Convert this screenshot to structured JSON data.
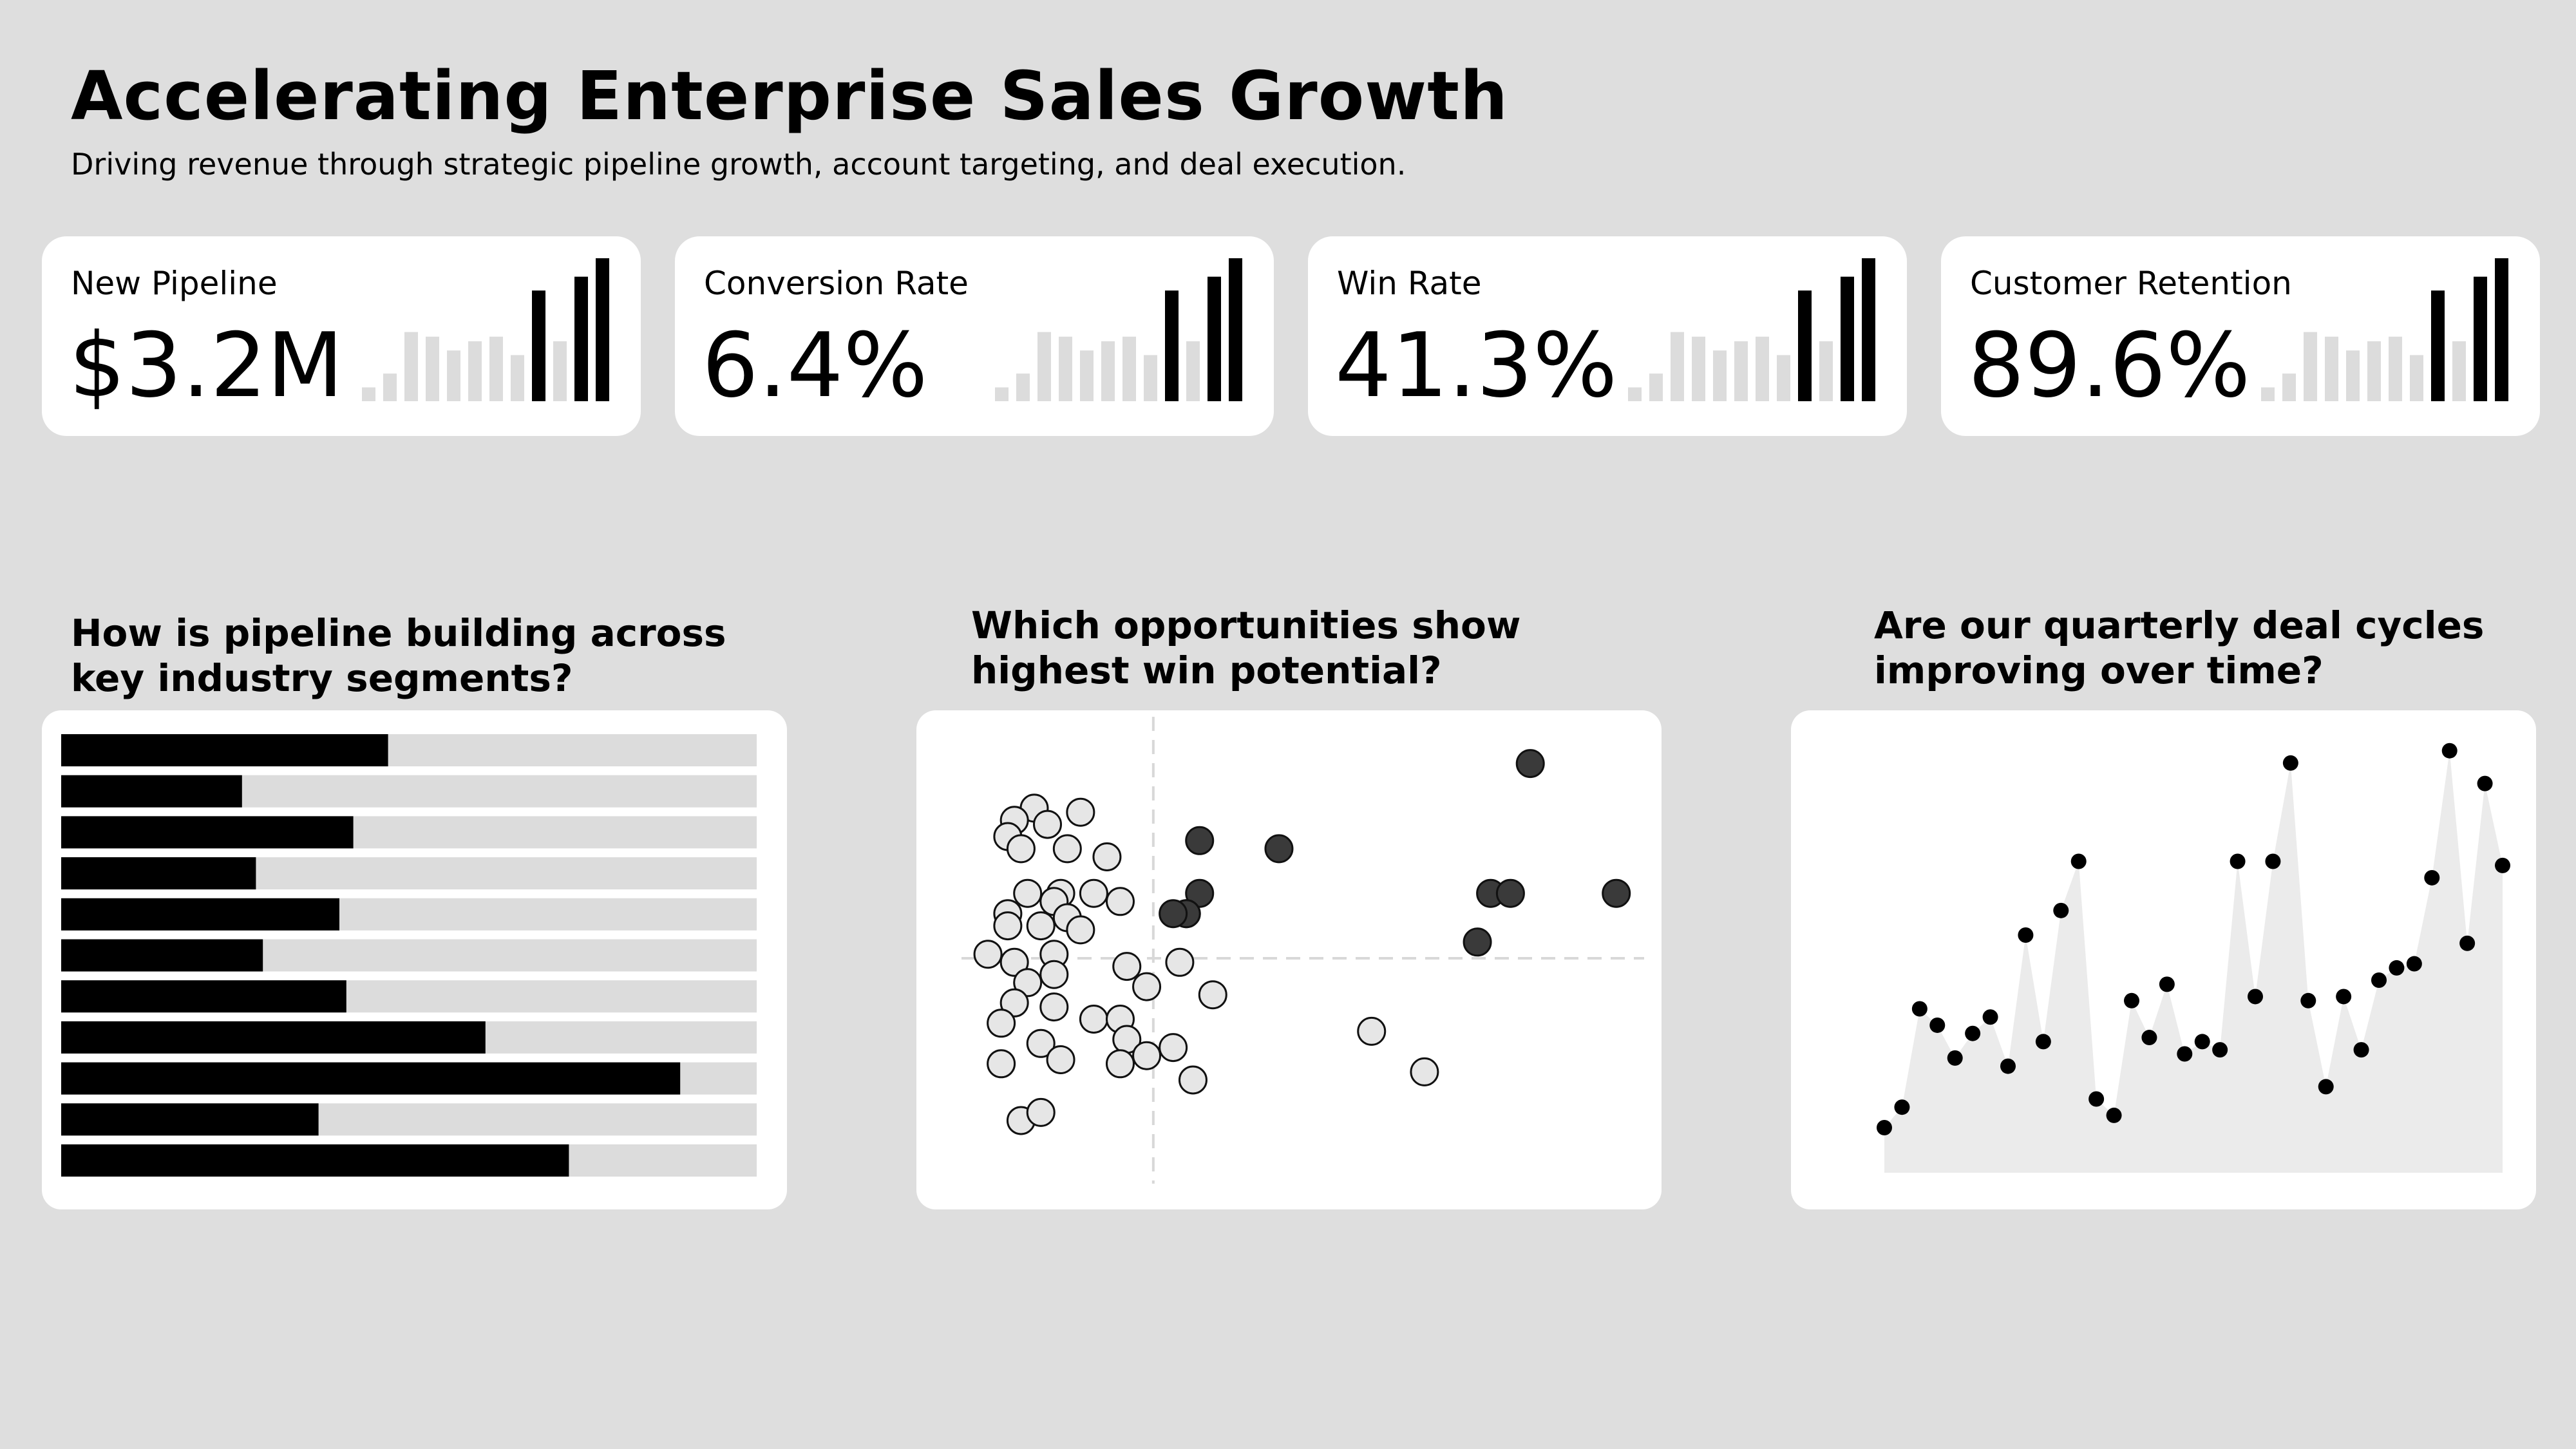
{
  "header": {
    "title": "Accelerating Enterprise Sales Growth",
    "subtitle": "Driving revenue through strategic pipeline growth, account targeting, and deal execution."
  },
  "colors": {
    "background": "#dedede",
    "card": "#ffffff",
    "accent": "#000000",
    "muted": "#dcdcdc",
    "dot_light": "#e6e6e6",
    "dot_dark": "#3a3a3a",
    "area": "#ebebeb"
  },
  "kpis": [
    {
      "label": "New Pipeline",
      "value": "$3.2M",
      "spark": [
        3,
        6,
        15,
        14,
        11,
        13,
        14,
        10,
        24,
        13,
        27,
        31
      ],
      "highlight_from": 8
    },
    {
      "label": "Conversion Rate",
      "value": "6.4%",
      "spark": [
        3,
        6,
        15,
        14,
        11,
        13,
        14,
        10,
        24,
        13,
        27,
        31
      ],
      "highlight_from": 8
    },
    {
      "label": "Win Rate",
      "value": "41.3%",
      "spark": [
        3,
        6,
        15,
        14,
        11,
        13,
        14,
        10,
        24,
        13,
        27,
        31
      ],
      "highlight_from": 8
    },
    {
      "label": "Customer Retention",
      "value": "89.6%",
      "spark": [
        3,
        6,
        15,
        14,
        11,
        13,
        14,
        10,
        24,
        13,
        27,
        31
      ],
      "highlight_from": 8
    }
  ],
  "panels": {
    "segments_title": "How is pipeline building across key industry segments?",
    "opportunities_title": "Which opportunities show highest win potential?",
    "cycles_title": "Are our quarterly deal cycles improving over time?"
  },
  "chart_data": [
    {
      "type": "bar",
      "orientation": "horizontal",
      "categories": [
        "",
        "",
        "",
        "",
        "",
        "",
        "",
        "",
        "",
        "",
        ""
      ],
      "values": [
        0.47,
        0.26,
        0.42,
        0.28,
        0.4,
        0.29,
        0.41,
        0.61,
        0.89,
        0.37,
        0.73
      ],
      "ylim": [
        0,
        1
      ],
      "grid": false
    },
    {
      "type": "scatter",
      "x": [
        0.11,
        0.08,
        0.13,
        0.18,
        0.07,
        0.09,
        0.16,
        0.22,
        0.1,
        0.15,
        0.2,
        0.24,
        0.07,
        0.14,
        0.16,
        0.07,
        0.12,
        0.18,
        0.04,
        0.08,
        0.14,
        0.14,
        0.1,
        0.25,
        0.33,
        0.28,
        0.38,
        0.08,
        0.14,
        0.06,
        0.2,
        0.24,
        0.12,
        0.25,
        0.06,
        0.15,
        0.24,
        0.28,
        0.32,
        0.35,
        0.09,
        0.12,
        0.62,
        0.48,
        0.7,
        0.36,
        0.36,
        0.8,
        0.99,
        0.34,
        0.34,
        0.32,
        0.78,
        0.86,
        0.83
      ],
      "y": [
        0.87,
        0.84,
        0.83,
        0.86,
        0.8,
        0.77,
        0.77,
        0.75,
        0.66,
        0.66,
        0.66,
        0.64,
        0.61,
        0.64,
        0.6,
        0.58,
        0.58,
        0.57,
        0.51,
        0.49,
        0.51,
        0.46,
        0.44,
        0.48,
        0.49,
        0.43,
        0.41,
        0.39,
        0.38,
        0.34,
        0.35,
        0.35,
        0.29,
        0.3,
        0.24,
        0.25,
        0.24,
        0.26,
        0.28,
        0.2,
        0.1,
        0.12,
        0.32,
        0.77,
        0.22,
        0.79,
        0.66,
        0.66,
        0.66,
        0.61,
        0.61,
        0.61,
        0.54,
        0.98,
        0.66
      ],
      "group": [
        0,
        0,
        0,
        0,
        0,
        0,
        0,
        0,
        0,
        0,
        0,
        0,
        0,
        0,
        0,
        0,
        0,
        0,
        0,
        0,
        0,
        0,
        0,
        0,
        0,
        0,
        0,
        0,
        0,
        0,
        0,
        0,
        0,
        0,
        0,
        0,
        0,
        0,
        0,
        0,
        0,
        0,
        0,
        1,
        0,
        1,
        1,
        1,
        1,
        1,
        1,
        1,
        1,
        1,
        1
      ],
      "xlim": [
        0,
        1
      ],
      "ylim": [
        0,
        1
      ],
      "reference_lines": {
        "x": 0.29,
        "y": 0.5
      },
      "grid": false
    },
    {
      "type": "area",
      "x": [
        1,
        2,
        3,
        4,
        5,
        6,
        7,
        8,
        9,
        10,
        11,
        12,
        13,
        14,
        15,
        16,
        17,
        18,
        19,
        20,
        21,
        22,
        23,
        24,
        25,
        26,
        27,
        28,
        29,
        30,
        31,
        32,
        33,
        34,
        35,
        36
      ],
      "values": [
        0.11,
        0.16,
        0.4,
        0.36,
        0.28,
        0.34,
        0.38,
        0.26,
        0.58,
        0.32,
        0.64,
        0.76,
        0.18,
        0.14,
        0.42,
        0.33,
        0.46,
        0.29,
        0.32,
        0.3,
        0.76,
        0.43,
        0.76,
        1.0,
        0.42,
        0.21,
        0.43,
        0.3,
        0.47,
        0.5,
        0.51,
        0.72,
        1.03,
        0.56,
        0.95,
        0.75
      ],
      "ylim": [
        0,
        1.05
      ],
      "grid": false
    }
  ]
}
